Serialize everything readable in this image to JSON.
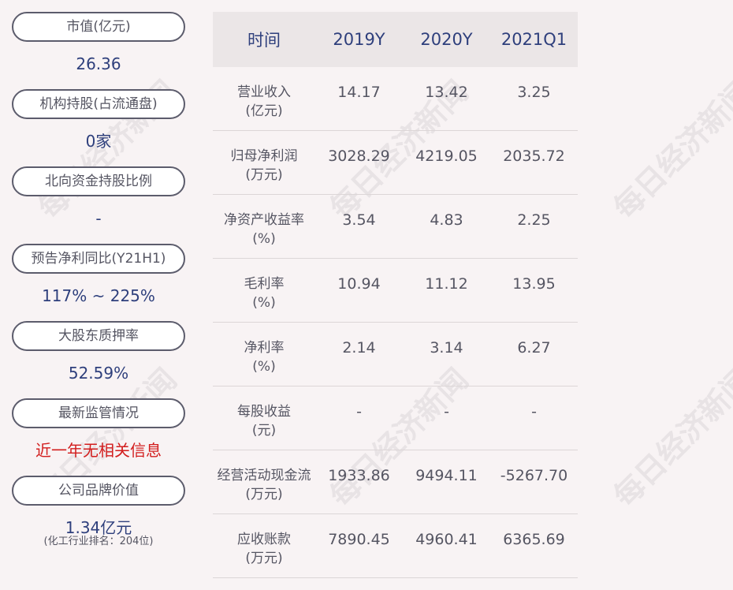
{
  "left_panel": [
    {
      "label": "市值(亿元)",
      "value": "26.36"
    },
    {
      "label": "机构持股(占流通盘)",
      "value": "0家"
    },
    {
      "label": "北向资金持股比例",
      "value": "-"
    },
    {
      "label": "预告净利同比(Y21H1)",
      "value": "117% ~ 225%"
    },
    {
      "label": "大股东质押率",
      "value": "52.59%"
    },
    {
      "label": "最新监管情况",
      "value": "近一年无相关信息"
    },
    {
      "label": "公司品牌价值",
      "value": "1.34亿元",
      "note": "(化工行业排名：204位)"
    }
  ],
  "table": {
    "header": [
      "时间",
      "2019Y",
      "2020Y",
      "2021Q1"
    ],
    "rows": [
      {
        "label": "营业收入",
        "unit": "(亿元)",
        "values": [
          "14.17",
          "13.42",
          "3.25"
        ]
      },
      {
        "label": "归母净利润",
        "unit": "(万元)",
        "values": [
          "3028.29",
          "4219.05",
          "2035.72"
        ]
      },
      {
        "label": "净资产收益率",
        "unit": "(%)",
        "values": [
          "3.54",
          "4.83",
          "2.25"
        ]
      },
      {
        "label": "毛利率",
        "unit": "(%)",
        "values": [
          "10.94",
          "11.12",
          "13.95"
        ]
      },
      {
        "label": "净利率",
        "unit": "(%)",
        "values": [
          "2.14",
          "3.14",
          "6.27"
        ]
      },
      {
        "label": "每股收益",
        "unit": "(元)",
        "values": [
          "-",
          "-",
          "-"
        ]
      },
      {
        "label": "经营活动现金流",
        "unit": "(万元)",
        "values": [
          "1933.86",
          "9494.11",
          "-5267.70"
        ]
      },
      {
        "label": "应收账款",
        "unit": "(万元)",
        "values": [
          "7890.45",
          "4960.41",
          "6365.69"
        ]
      }
    ]
  },
  "watermark": "每日经济新闻",
  "colors": {
    "value": "#2e3f7c",
    "alert": "#d21d1d",
    "background": "#f8f3f4"
  }
}
